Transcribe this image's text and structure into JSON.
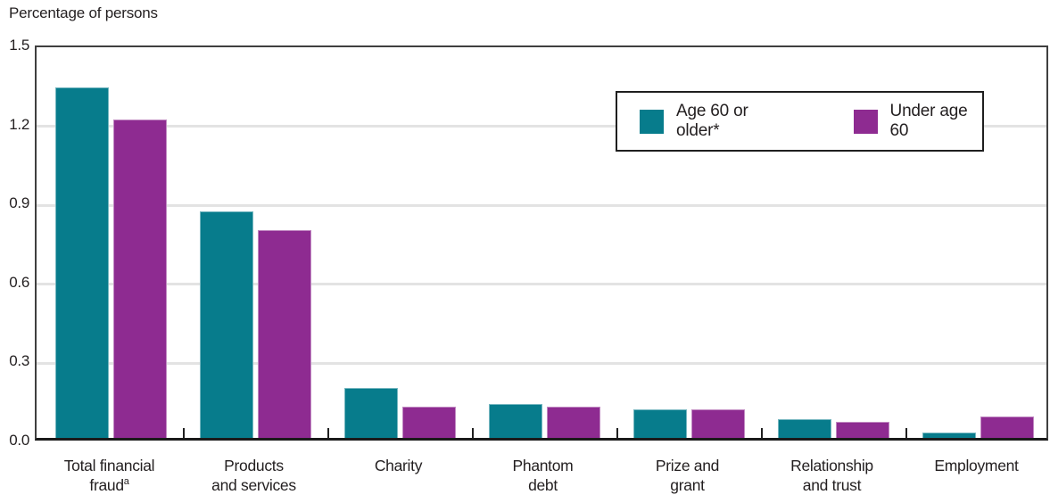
{
  "title": "Percentage of persons",
  "colors": {
    "series_teal": "#077C8C",
    "series_purple": "#8E2B91",
    "gridline": "#E3E3E3",
    "axis_border": "#3F3F3F",
    "baseline": "#1A1A1A",
    "text": "#231F20",
    "legend_border": "#1F1F1F"
  },
  "legend": {
    "items": [
      {
        "label": "Age 60 or older*",
        "color": "#077C8C"
      },
      {
        "label": "Under age 60",
        "color": "#8E2B91"
      }
    ]
  },
  "chart_data": {
    "type": "bar",
    "title": "Percentage of persons",
    "ylabel": "Percentage of persons",
    "xlabel": "",
    "ylim": [
      0,
      1.5
    ],
    "yticks": [
      0.0,
      0.3,
      0.6,
      0.9,
      1.2,
      1.5
    ],
    "ytick_labels": [
      "0.0",
      "0.3",
      "0.6",
      "0.9",
      "1.2",
      "1.5"
    ],
    "grid": true,
    "legend_position": "top-right",
    "categories": [
      {
        "name": "Total financial fraud",
        "lines": [
          "Total financial",
          "fraud"
        ],
        "footnote_marker": "a"
      },
      {
        "name": "Products and services",
        "lines": [
          "Products",
          "and services"
        ]
      },
      {
        "name": "Charity",
        "lines": [
          "Charity"
        ]
      },
      {
        "name": "Phantom debt",
        "lines": [
          "Phantom",
          "debt"
        ]
      },
      {
        "name": "Prize and grant",
        "lines": [
          "Prize and",
          "grant"
        ]
      },
      {
        "name": "Relationship and trust",
        "lines": [
          "Relationship",
          "and trust"
        ]
      },
      {
        "name": "Employment",
        "lines": [
          "Employment"
        ]
      }
    ],
    "series": [
      {
        "name": "Age 60 or older*",
        "color": "#077C8C",
        "values": [
          1.33,
          0.86,
          0.19,
          0.13,
          0.11,
          0.07,
          0.02
        ]
      },
      {
        "name": "Under age 60",
        "color": "#8E2B91",
        "values": [
          1.21,
          0.79,
          0.12,
          0.12,
          0.11,
          0.06,
          0.08
        ]
      }
    ]
  }
}
